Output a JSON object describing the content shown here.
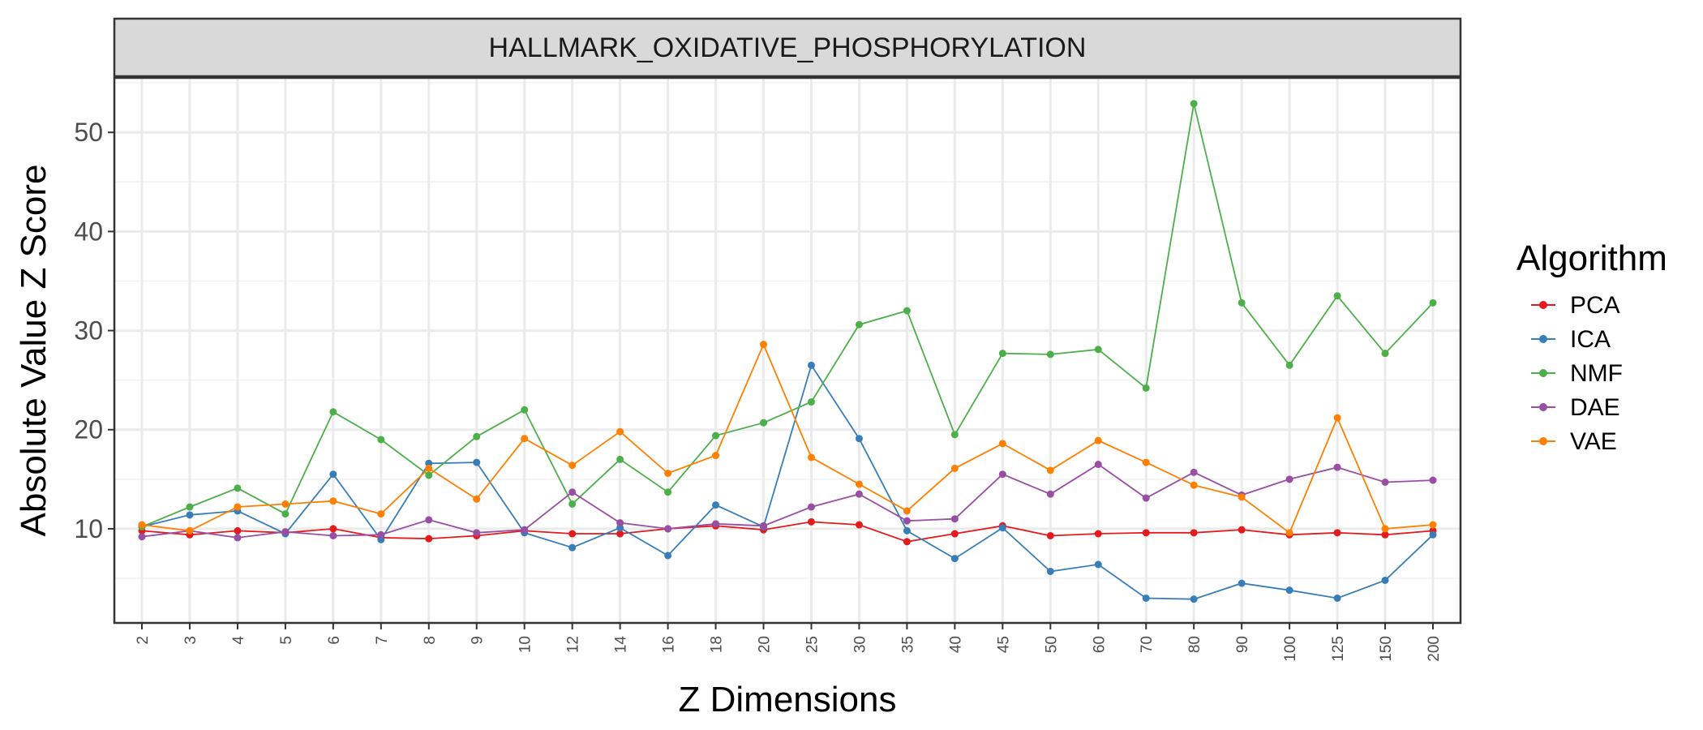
{
  "chart_data": {
    "type": "line",
    "facet_title": "HALLMARK_OXIDATIVE_PHOSPHORYLATION",
    "xlabel": "Z Dimensions",
    "ylabel": "Absolute Value Z Score",
    "legend_title": "Algorithm",
    "legend_position": "right",
    "grid": true,
    "ylim": [
      0.5,
      55.5
    ],
    "yticks": [
      10,
      20,
      30,
      40,
      50
    ],
    "categories": [
      "2",
      "3",
      "4",
      "5",
      "6",
      "7",
      "8",
      "9",
      "10",
      "12",
      "14",
      "16",
      "18",
      "20",
      "25",
      "30",
      "35",
      "40",
      "45",
      "50",
      "60",
      "70",
      "80",
      "90",
      "100",
      "125",
      "150",
      "200"
    ],
    "series": [
      {
        "name": "PCA",
        "color": "#E41A1C",
        "values": [
          9.8,
          9.4,
          9.8,
          9.6,
          10.0,
          9.1,
          9.0,
          9.3,
          9.8,
          9.5,
          9.5,
          10.0,
          10.3,
          9.9,
          10.7,
          10.4,
          8.7,
          9.5,
          10.3,
          9.3,
          9.5,
          9.6,
          9.6,
          9.9,
          9.4,
          9.6,
          9.4,
          9.8
        ]
      },
      {
        "name": "ICA",
        "color": "#377EB8",
        "values": [
          10.2,
          11.4,
          11.8,
          9.5,
          15.5,
          8.9,
          16.6,
          16.7,
          9.6,
          8.1,
          10.1,
          7.3,
          12.4,
          10.2,
          26.5,
          19.1,
          9.8,
          7.0,
          10.1,
          5.7,
          6.4,
          3.0,
          2.9,
          4.5,
          3.8,
          3.0,
          4.8,
          9.4
        ]
      },
      {
        "name": "NMF",
        "color": "#4DAF4A",
        "values": [
          10.2,
          12.2,
          14.1,
          11.5,
          21.8,
          19.0,
          15.4,
          19.3,
          22.0,
          12.5,
          17.0,
          13.7,
          19.4,
          20.7,
          22.8,
          30.6,
          32.0,
          19.5,
          27.7,
          27.6,
          28.1,
          24.2,
          52.9,
          32.8,
          26.5,
          33.5,
          27.7,
          32.8
        ]
      },
      {
        "name": "DAE",
        "color": "#984EA3",
        "values": [
          9.2,
          9.8,
          9.1,
          9.7,
          9.3,
          9.4,
          10.9,
          9.6,
          9.9,
          13.7,
          10.6,
          10.0,
          10.5,
          10.3,
          12.2,
          13.5,
          10.8,
          11.0,
          15.5,
          13.5,
          16.5,
          13.1,
          15.7,
          13.4,
          15.0,
          16.2,
          14.7,
          14.9
        ]
      },
      {
        "name": "VAE",
        "color": "#FF7F00",
        "values": [
          10.4,
          9.8,
          12.2,
          12.5,
          12.8,
          11.5,
          16.1,
          13.0,
          19.1,
          16.4,
          19.8,
          15.6,
          17.4,
          28.6,
          17.2,
          14.5,
          11.8,
          16.1,
          18.6,
          15.9,
          18.9,
          16.7,
          14.4,
          13.2,
          9.6,
          21.2,
          10.0,
          10.4
        ]
      }
    ]
  }
}
